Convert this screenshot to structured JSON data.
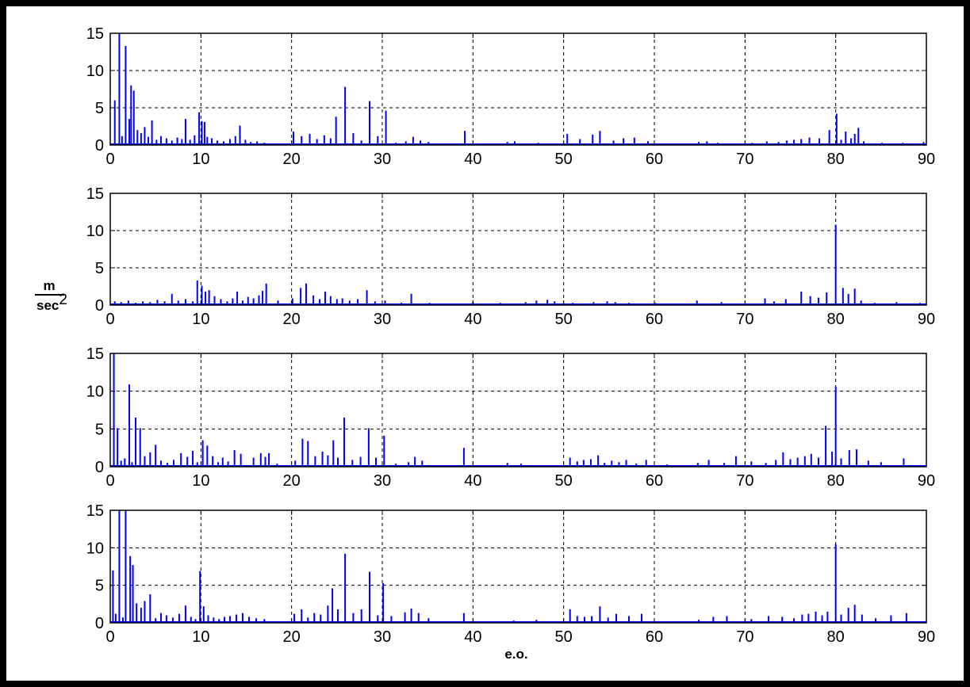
{
  "colors": {
    "series": "#0000ff",
    "axes": "#000000",
    "grid": "#000000",
    "background": "#ffffff"
  },
  "figure": {
    "xlabel": "e.o.",
    "ylabel_top": "m",
    "ylabel_bottom": "sec",
    "ylabel_exponent": "2"
  },
  "chart_data": [
    {
      "type": "bar",
      "grid": true,
      "xlim": [
        0,
        90
      ],
      "ylim": [
        0,
        15
      ],
      "xticks": [
        "0",
        "10",
        "20",
        "30",
        "40",
        "50",
        "60",
        "70",
        "80",
        "90"
      ],
      "yticks": [
        "0",
        "5",
        "10",
        "15"
      ],
      "series": [
        {
          "x": [
            0.5,
            1,
            1.3,
            1.7,
            2.1,
            2.3,
            2.6,
            3,
            3.4,
            3.8,
            4.2,
            4.6,
            5.1,
            5.6,
            6.2,
            6.8,
            7.4,
            7.9,
            8.3,
            8.8,
            9.3,
            9.8,
            10.1,
            10.4,
            10.7,
            11.2,
            11.8,
            12.5,
            13.2,
            13.8,
            14.3,
            14.9,
            15.5,
            16.2,
            17,
            20.2,
            21.1,
            22,
            22.8,
            23.6,
            24.3,
            24.9,
            25.9,
            26.8,
            27.7,
            28.6,
            29.5,
            30.4,
            31.5,
            32.6,
            33.4,
            34.2,
            35.1,
            39.1,
            43.8,
            44.6,
            47.2,
            50.4,
            51.8,
            53.2,
            54,
            55.5,
            56.6,
            57.8,
            59.3,
            64.9,
            65.8,
            67,
            70.8,
            72.4,
            73.7,
            74.6,
            75.4,
            76.2,
            77.1,
            78.2,
            79.3,
            80.1,
            80.6,
            81.1,
            81.7,
            82.1,
            82.5,
            83.1,
            85.1,
            87.4,
            89.7
          ],
          "values": [
            6,
            15,
            1.2,
            13.3,
            3.5,
            8,
            7.3,
            2,
            1.6,
            2.4,
            1.1,
            3.3,
            0.7,
            1.2,
            0.9,
            0.6,
            1,
            0.8,
            3.5,
            0.7,
            1.3,
            4.4,
            3.2,
            3.1,
            1.1,
            0.9,
            0.6,
            0.5,
            0.8,
            1.2,
            2.6,
            0.7,
            0.4,
            0.5,
            0.3,
            1.8,
            1.2,
            1.5,
            0.8,
            1.3,
            0.9,
            3.8,
            7.8,
            1.6,
            0.6,
            5.9,
            1.2,
            4.6,
            0.3,
            0.5,
            1.1,
            0.6,
            0.4,
            1.9,
            0.4,
            0.5,
            0.3,
            1.5,
            0.8,
            1.4,
            1.9,
            0.6,
            0.9,
            1,
            0.5,
            0.4,
            0.5,
            0.3,
            0.3,
            0.5,
            0.4,
            0.6,
            0.7,
            0.8,
            1,
            0.9,
            2,
            4.2,
            0.7,
            1.8,
            0.9,
            1.5,
            2.3,
            0.5,
            0.3,
            0.3,
            0.4
          ]
        }
      ]
    },
    {
      "type": "bar",
      "grid": true,
      "xlim": [
        0,
        90
      ],
      "ylim": [
        0,
        15
      ],
      "xticks": [
        "0",
        "10",
        "20",
        "30",
        "40",
        "50",
        "60",
        "70",
        "80",
        "90"
      ],
      "yticks": [
        "0",
        "5",
        "10",
        "15"
      ],
      "series": [
        {
          "x": [
            0.5,
            1.2,
            2,
            2.8,
            3.6,
            4.4,
            5.2,
            6,
            6.8,
            7.5,
            8.3,
            9.1,
            9.6,
            10.1,
            10.5,
            10.9,
            11.5,
            12.2,
            12.9,
            13.5,
            14,
            14.6,
            15.2,
            15.8,
            16.4,
            16.8,
            17.2,
            18.5,
            20.1,
            21,
            21.6,
            22.4,
            23.1,
            23.7,
            24.3,
            25,
            25.6,
            26.4,
            27.3,
            28.3,
            29.2,
            30.3,
            32.1,
            33.2,
            35.2,
            40,
            43,
            45.8,
            47,
            48.2,
            49,
            51,
            53.3,
            54.8,
            55.7,
            57.2,
            60.1,
            64.7,
            67.4,
            72.2,
            73.2,
            74.5,
            76.2,
            77.2,
            78.1,
            79,
            80,
            80.8,
            81.4,
            82.1,
            82.8,
            84.3,
            86.7,
            89.3
          ],
          "values": [
            0.5,
            0.4,
            0.6,
            0.3,
            0.5,
            0.4,
            0.7,
            0.5,
            1.5,
            0.6,
            0.8,
            0.5,
            3.3,
            2.6,
            1.8,
            2,
            1.2,
            0.8,
            0.5,
            0.9,
            1.8,
            0.6,
            1.1,
            0.9,
            1.3,
            1.9,
            2.9,
            0.6,
            0.9,
            2.3,
            2.9,
            1.3,
            0.8,
            1.8,
            1.2,
            0.8,
            0.9,
            0.6,
            0.8,
            2,
            0.5,
            0.6,
            0.3,
            1.5,
            0.3,
            0.4,
            0.3,
            0.4,
            0.6,
            0.7,
            0.5,
            0.3,
            0.4,
            0.5,
            0.4,
            0.3,
            0.3,
            0.6,
            0.4,
            0.9,
            0.5,
            0.8,
            1.8,
            1.2,
            1,
            1.7,
            10.8,
            2.3,
            1.5,
            2.2,
            0.6,
            0.3,
            0.4,
            0.3
          ]
        }
      ]
    },
    {
      "type": "bar",
      "grid": true,
      "xlim": [
        0,
        90
      ],
      "ylim": [
        0,
        15
      ],
      "xticks": [
        "0",
        "10",
        "20",
        "30",
        "40",
        "50",
        "60",
        "70",
        "80",
        "90"
      ],
      "yticks": [
        "0",
        "5",
        "10",
        "15"
      ],
      "series": [
        {
          "x": [
            0.4,
            0.8,
            1.2,
            1.6,
            2.1,
            2.4,
            2.8,
            3.3,
            3.8,
            4.4,
            5,
            5.6,
            6.3,
            7,
            7.8,
            8.5,
            9.1,
            9.6,
            10.2,
            10.7,
            11.3,
            11.9,
            12.4,
            13,
            13.7,
            14.4,
            15.8,
            16.6,
            17.1,
            17.5,
            18.4,
            20.4,
            21.2,
            21.8,
            22.6,
            23.4,
            24,
            24.6,
            25.1,
            25.8,
            26.7,
            27.6,
            28.5,
            29.3,
            30.2,
            31.5,
            32.9,
            33.6,
            34.4,
            39,
            43.8,
            45.3,
            50.7,
            51.5,
            52.2,
            53,
            53.8,
            54.5,
            55.3,
            56.1,
            56.9,
            58,
            59.1,
            61.4,
            64.8,
            66,
            67.7,
            69,
            70.7,
            72.3,
            73.4,
            74.2,
            75,
            75.8,
            76.6,
            77.3,
            78.1,
            78.9,
            79.6,
            80,
            80.6,
            81.5,
            82.3,
            83.6,
            85,
            87.5
          ],
          "values": [
            15,
            5.1,
            0.8,
            1.1,
            10.9,
            0.6,
            6.5,
            5.1,
            1.4,
            1.9,
            2.9,
            0.8,
            0.5,
            0.9,
            1.8,
            1.3,
            2.1,
            0.6,
            3.5,
            2.8,
            1.4,
            0.6,
            1.2,
            0.7,
            2.2,
            1.7,
            1.2,
            1.8,
            1.3,
            1.8,
            0.4,
            0.8,
            3.7,
            3.4,
            1.4,
            2,
            1.5,
            3.5,
            1.2,
            6.5,
            0.9,
            1.3,
            5.1,
            1.2,
            4.1,
            0.4,
            0.6,
            1.3,
            0.8,
            2.5,
            0.5,
            0.4,
            1.2,
            0.7,
            0.9,
            1,
            1.5,
            0.5,
            0.8,
            0.6,
            0.9,
            0.4,
            0.9,
            0.3,
            0.5,
            0.9,
            0.5,
            1.4,
            0.7,
            0.5,
            0.9,
            1.9,
            1,
            1.2,
            1.4,
            1.7,
            1.2,
            5.4,
            2,
            10.6,
            1.1,
            2.2,
            2.3,
            0.8,
            0.6,
            1.1
          ]
        }
      ]
    },
    {
      "type": "bar",
      "grid": true,
      "xlim": [
        0,
        90
      ],
      "ylim": [
        0,
        15
      ],
      "xticks": [
        "0",
        "10",
        "20",
        "30",
        "40",
        "50",
        "60",
        "70",
        "80",
        "90"
      ],
      "yticks": [
        "0",
        "5",
        "10",
        "15"
      ],
      "series": [
        {
          "x": [
            0.3,
            0.6,
            1,
            1.4,
            1.7,
            2.2,
            2.5,
            2.9,
            3.4,
            3.8,
            4.4,
            5,
            5.6,
            6.2,
            6.9,
            7.6,
            8.3,
            8.9,
            9.4,
            9.9,
            10.3,
            10.8,
            11.4,
            12,
            12.6,
            13.2,
            13.9,
            14.6,
            15.3,
            16.1,
            17,
            20.3,
            21.1,
            21.8,
            22.5,
            23.2,
            24,
            24.5,
            25.1,
            25.9,
            26.8,
            27.7,
            28.6,
            29.5,
            30.1,
            31,
            32.5,
            33.2,
            34,
            35.1,
            39,
            44.5,
            47,
            50.7,
            51.5,
            52.3,
            53.1,
            54,
            54.9,
            55.8,
            57.2,
            58.6,
            64.9,
            66.5,
            68,
            70.7,
            72.6,
            74.1,
            75.4,
            76.3,
            77,
            77.8,
            78.5,
            79.1,
            80,
            80.6,
            81.4,
            82.1,
            82.9,
            84.4,
            86.1,
            87.8
          ],
          "values": [
            7,
            1.2,
            15,
            0.7,
            15,
            8.9,
            7.7,
            2.6,
            2,
            2.9,
            3.8,
            0.6,
            1.3,
            1,
            0.7,
            1.2,
            2.3,
            0.8,
            0.5,
            6.9,
            2.2,
            1,
            0.7,
            0.5,
            0.8,
            0.9,
            1.1,
            1.3,
            0.8,
            0.6,
            0.5,
            1.2,
            1.8,
            0.7,
            1.3,
            1.1,
            2.3,
            4.6,
            1.8,
            9.2,
            1.3,
            1.8,
            6.8,
            1,
            5.3,
            0.9,
            1.4,
            1.9,
            1.3,
            0.6,
            1.3,
            0.3,
            0.4,
            1.8,
            0.9,
            0.8,
            0.9,
            2.2,
            0.7,
            1.2,
            0.9,
            1.2,
            0.4,
            0.8,
            0.9,
            0.5,
            0.9,
            0.8,
            0.6,
            1.1,
            1.2,
            1.5,
            1,
            1.5,
            10.5,
            1.1,
            2,
            2.4,
            1.1,
            0.6,
            1,
            1.3
          ]
        }
      ]
    }
  ]
}
